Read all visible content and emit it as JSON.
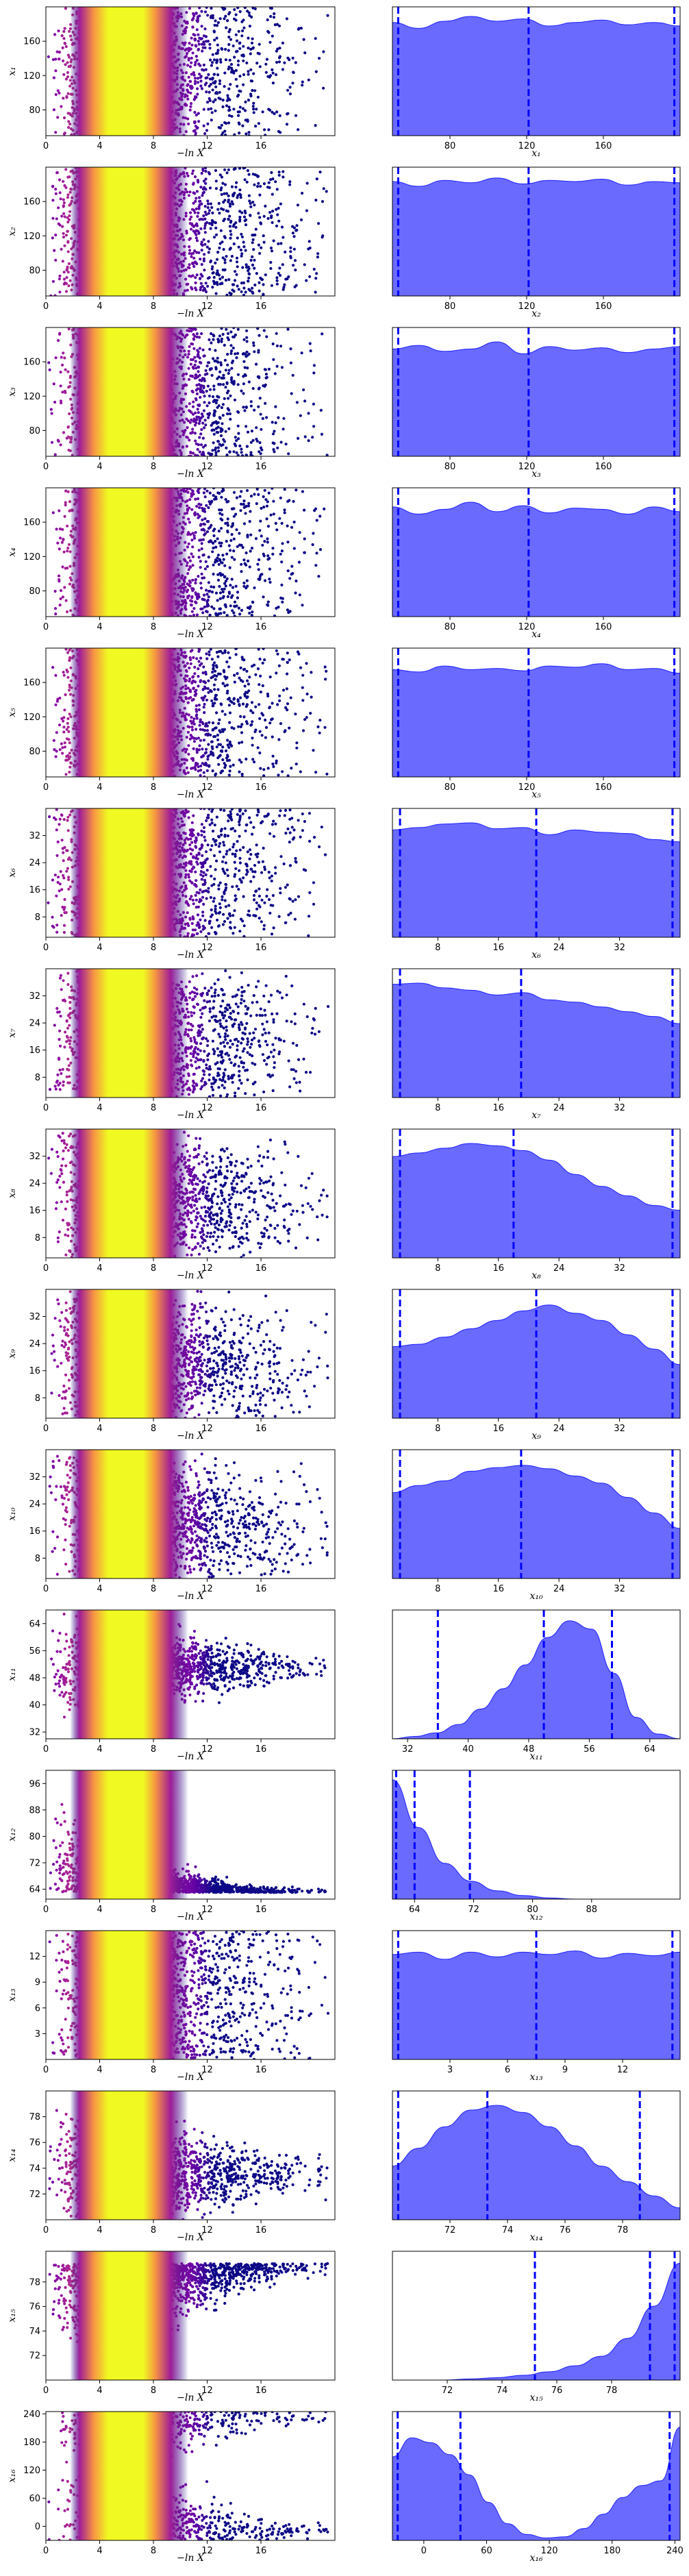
{
  "figure": {
    "scatter_xlabel": "−ln X",
    "scatter_xticks": [
      "0",
      "4",
      "8",
      "12",
      "16"
    ],
    "colormap": "plasma",
    "density_fill": "#5a5aff",
    "density_line": "#2020ff",
    "quantile_line": "#0000ff"
  },
  "chart_data": [
    {
      "type": "scatter+density",
      "param": "x1",
      "ylabel": "x₁",
      "xlabel": "x₁",
      "range": [
        50,
        200
      ],
      "yticks": [
        "80",
        "120",
        "160"
      ],
      "dticks": [
        "80",
        "120",
        "160"
      ],
      "mode": "uniform",
      "decay": 0.0,
      "quantiles": [
        53,
        121,
        197
      ],
      "density": [
        0.95,
        0.9,
        0.96,
        1.0,
        0.96,
        0.98,
        0.92,
        0.95,
        0.97,
        0.93,
        0.95,
        0.92
      ]
    },
    {
      "type": "scatter+density",
      "param": "x2",
      "ylabel": "x₂",
      "xlabel": "x₂",
      "range": [
        50,
        200
      ],
      "yticks": [
        "80",
        "120",
        "160"
      ],
      "dticks": [
        "80",
        "120",
        "160"
      ],
      "mode": "uniform",
      "decay": 0.0,
      "quantiles": [
        53,
        121,
        197
      ],
      "density": [
        0.96,
        0.92,
        0.97,
        0.95,
        0.99,
        0.94,
        0.97,
        0.96,
        0.98,
        0.93,
        0.96,
        0.95
      ]
    },
    {
      "type": "scatter+density",
      "param": "x3",
      "ylabel": "x₃",
      "xlabel": "x₃",
      "range": [
        50,
        200
      ],
      "yticks": [
        "80",
        "120",
        "160"
      ],
      "dticks": [
        "80",
        "120",
        "160"
      ],
      "mode": "uniform",
      "decay": 0.0,
      "quantiles": [
        53,
        121,
        197
      ],
      "density": [
        0.9,
        0.93,
        0.88,
        0.9,
        0.96,
        0.86,
        0.92,
        0.89,
        0.91,
        0.87,
        0.9,
        0.92
      ]
    },
    {
      "type": "scatter+density",
      "param": "x4",
      "ylabel": "x₄",
      "xlabel": "x₄",
      "range": [
        50,
        200
      ],
      "yticks": [
        "80",
        "120",
        "160"
      ],
      "dticks": [
        "80",
        "120",
        "160"
      ],
      "mode": "uniform",
      "decay": 0.0,
      "quantiles": [
        53,
        121,
        197
      ],
      "density": [
        0.92,
        0.86,
        0.9,
        0.96,
        0.88,
        0.93,
        0.87,
        0.91,
        0.9,
        0.86,
        0.92,
        0.88
      ]
    },
    {
      "type": "scatter+density",
      "param": "x5",
      "ylabel": "x₅",
      "xlabel": "x₅",
      "range": [
        50,
        200
      ],
      "yticks": [
        "80",
        "120",
        "160"
      ],
      "dticks": [
        "80",
        "120",
        "160"
      ],
      "mode": "uniform",
      "decay": 0.0,
      "quantiles": [
        53,
        121,
        197
      ],
      "density": [
        0.9,
        0.88,
        0.93,
        0.9,
        0.91,
        0.89,
        0.93,
        0.92,
        0.95,
        0.9,
        0.91,
        0.87
      ]
    },
    {
      "type": "scatter+density",
      "param": "x6",
      "ylabel": "x₆",
      "xlabel": "x₆",
      "range": [
        2,
        40
      ],
      "yticks": [
        "8",
        "16",
        "24",
        "32"
      ],
      "dticks": [
        "8",
        "16",
        "24",
        "32"
      ],
      "mode": "uniform",
      "decay": 0.0,
      "quantiles": [
        3,
        21,
        39
      ],
      "density": [
        0.9,
        0.92,
        0.95,
        0.96,
        0.91,
        0.92,
        0.86,
        0.9,
        0.88,
        0.87,
        0.82,
        0.8
      ]
    },
    {
      "type": "scatter+density",
      "param": "x7",
      "ylabel": "x₇",
      "xlabel": "x₇",
      "range": [
        2,
        40
      ],
      "yticks": [
        "8",
        "16",
        "24",
        "32"
      ],
      "dticks": [
        "8",
        "16",
        "24",
        "32"
      ],
      "mode": "uniform",
      "decay": 0.25,
      "quantiles": [
        3,
        19,
        39
      ],
      "density": [
        0.95,
        0.96,
        0.92,
        0.9,
        0.86,
        0.88,
        0.82,
        0.8,
        0.76,
        0.72,
        0.68,
        0.62
      ]
    },
    {
      "type": "scatter+density",
      "param": "x8",
      "ylabel": "x₈",
      "xlabel": "x₈",
      "range": [
        2,
        40
      ],
      "yticks": [
        "8",
        "16",
        "24",
        "32"
      ],
      "dticks": [
        "8",
        "16",
        "24",
        "32"
      ],
      "mode": "uniform",
      "decay": 0.5,
      "quantiles": [
        3,
        18,
        39
      ],
      "density": [
        0.85,
        0.88,
        0.92,
        0.96,
        0.94,
        0.9,
        0.82,
        0.7,
        0.6,
        0.52,
        0.44,
        0.4
      ]
    },
    {
      "type": "scatter+density",
      "param": "x9",
      "ylabel": "x₉",
      "xlabel": "x₉",
      "range": [
        2,
        40
      ],
      "yticks": [
        "8",
        "16",
        "24",
        "32"
      ],
      "dticks": [
        "8",
        "16",
        "24",
        "32"
      ],
      "mode": "uniform",
      "decay": 0.6,
      "quantiles": [
        3,
        21,
        39
      ],
      "density": [
        0.6,
        0.62,
        0.68,
        0.75,
        0.82,
        0.9,
        0.95,
        0.88,
        0.82,
        0.7,
        0.58,
        0.45
      ]
    },
    {
      "type": "scatter+density",
      "param": "x10",
      "ylabel": "x₁₀",
      "xlabel": "x₁₀",
      "range": [
        2,
        40
      ],
      "yticks": [
        "8",
        "16",
        "24",
        "32"
      ],
      "dticks": [
        "8",
        "16",
        "24",
        "32"
      ],
      "mode": "uniform",
      "decay": 0.6,
      "quantiles": [
        3,
        19,
        39
      ],
      "density": [
        0.72,
        0.78,
        0.82,
        0.9,
        0.93,
        0.95,
        0.92,
        0.86,
        0.8,
        0.68,
        0.55,
        0.42
      ]
    },
    {
      "type": "scatter+density",
      "param": "x11",
      "ylabel": "x₁₁",
      "xlabel": "x₁₁",
      "range": [
        30,
        68
      ],
      "yticks": [
        "32",
        "40",
        "48",
        "56",
        "64"
      ],
      "dticks": [
        "32",
        "40",
        "48",
        "56",
        "64"
      ],
      "mode": "converge",
      "center": 51,
      "spread": 16,
      "final": 4,
      "quantiles": [
        36,
        50,
        59
      ],
      "density": [
        0.0,
        0.02,
        0.05,
        0.12,
        0.25,
        0.42,
        0.62,
        0.85,
        0.99,
        0.92,
        0.55,
        0.18,
        0.04,
        0.0
      ]
    },
    {
      "type": "scatter+density",
      "param": "x12",
      "ylabel": "x₁₂",
      "xlabel": "x₁₂",
      "range": [
        61,
        100
      ],
      "yticks": [
        "64",
        "72",
        "80",
        "88",
        "96"
      ],
      "dticks": [
        "64",
        "72",
        "80",
        "88"
      ],
      "mode": "converge_low",
      "center": 63,
      "spread": 30,
      "final": 1.5,
      "quantiles": [
        61.5,
        64,
        71.5
      ],
      "density": [
        1.0,
        0.6,
        0.3,
        0.15,
        0.07,
        0.03,
        0.01,
        0.0,
        0.0,
        0.0,
        0.0,
        0.0
      ]
    },
    {
      "type": "scatter+density",
      "param": "x13",
      "ylabel": "x₁₃",
      "xlabel": "x₁₃",
      "range": [
        0,
        15
      ],
      "yticks": [
        "3",
        "6",
        "9",
        "12"
      ],
      "dticks": [
        "3",
        "6",
        "9",
        "12"
      ],
      "mode": "uniform",
      "decay": 0.0,
      "quantiles": [
        0.3,
        7.5,
        14.6
      ],
      "density": [
        0.88,
        0.9,
        0.84,
        0.9,
        0.86,
        0.9,
        0.88,
        0.91,
        0.85,
        0.89,
        0.87,
        0.9
      ]
    },
    {
      "type": "scatter+density",
      "param": "x14",
      "ylabel": "x₁₄",
      "xlabel": "x₁₄",
      "range": [
        70,
        80
      ],
      "yticks": [
        "72",
        "74",
        "76",
        "78"
      ],
      "dticks": [
        "72",
        "74",
        "76",
        "78"
      ],
      "mode": "converge",
      "center": 73.5,
      "spread": 5,
      "final": 1.6,
      "quantiles": [
        70.2,
        73.3,
        78.6
      ],
      "density": [
        0.45,
        0.6,
        0.78,
        0.92,
        0.96,
        0.9,
        0.78,
        0.62,
        0.45,
        0.32,
        0.2,
        0.1
      ]
    },
    {
      "type": "scatter+density",
      "param": "x15",
      "ylabel": "x₁₅",
      "xlabel": "x₁₅",
      "range": [
        70,
        80.5
      ],
      "yticks": [
        "72",
        "74",
        "76",
        "78"
      ],
      "dticks": [
        "72",
        "74",
        "76",
        "78"
      ],
      "mode": "converge_high",
      "center": 79.5,
      "spread": 5,
      "final": 0.8,
      "quantiles": [
        75.2,
        79.4,
        80.3
      ],
      "density": [
        0.0,
        0.0,
        0.0,
        0.01,
        0.02,
        0.04,
        0.07,
        0.12,
        0.2,
        0.35,
        0.62,
        0.98
      ]
    },
    {
      "type": "scatter+density",
      "param": "x16",
      "ylabel": "x₁₆",
      "xlabel": "x₁₆",
      "range": [
        -30,
        245
      ],
      "yticks": [
        "0",
        "60",
        "120",
        "180",
        "240"
      ],
      "dticks": [
        "0",
        "60",
        "120",
        "180",
        "240"
      ],
      "mode": "bimodal",
      "quantiles": [
        -25,
        35,
        235
      ],
      "density": [
        0.7,
        0.86,
        0.82,
        0.72,
        0.55,
        0.32,
        0.14,
        0.05,
        0.02,
        0.03,
        0.1,
        0.22,
        0.36,
        0.46,
        0.5,
        0.95
      ]
    }
  ]
}
